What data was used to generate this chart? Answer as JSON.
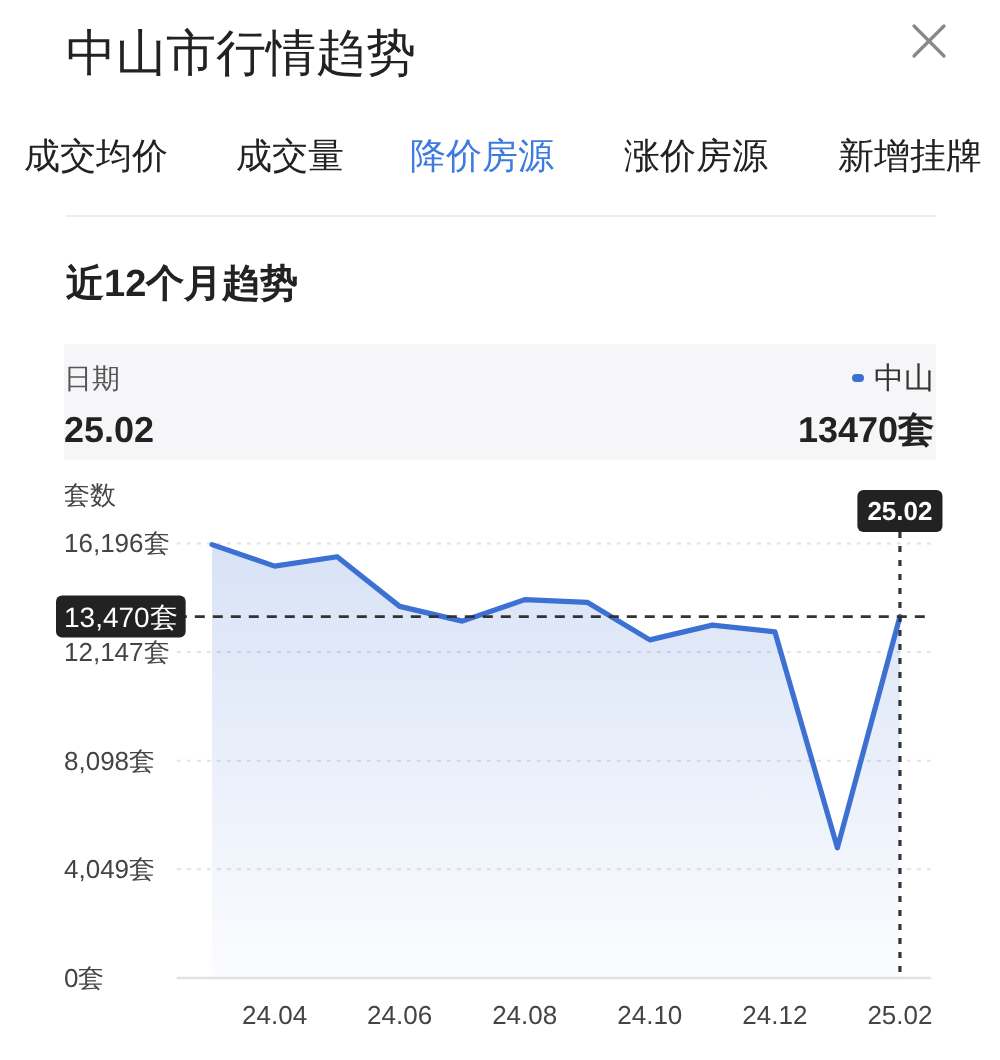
{
  "chart_data": {
    "type": "area",
    "title": "中山市行情趋势",
    "subtitle": "近12个月趋势",
    "ylabel": "套数",
    "annotations": [
      "成交均价",
      "成交量",
      "降价房源",
      "涨价房源",
      "新增挂牌",
      "日期",
      "25.02",
      "13470套"
    ],
    "categories": [
      null,
      "24.04",
      null,
      "24.06",
      null,
      "24.08",
      null,
      "24.10",
      null,
      "24.12",
      null,
      "25.02"
    ],
    "series": [
      {
        "name": "中山",
        "color": "#3d70d3",
        "values": [
          16150,
          15350,
          15700,
          13850,
          13300,
          14100,
          14000,
          12600,
          13150,
          12900,
          4850,
          13470
        ]
      }
    ],
    "ylim": [
      0,
      16196
    ],
    "yticks": [
      {
        "value": 0,
        "label": "0套"
      },
      {
        "value": 4049,
        "label": "4,049套"
      },
      {
        "value": 8098,
        "label": "8,098套"
      },
      {
        "value": 12147,
        "label": "12,147套"
      },
      {
        "value": 16196,
        "label": "16,196套"
      }
    ],
    "ref_lines": [
      {
        "axis": "y",
        "value": 13470,
        "label": "13,470套",
        "color": "#333333",
        "line_style": "dashed"
      },
      {
        "axis": "x",
        "value": "25.02",
        "label": "25.02",
        "color": "#333333",
        "line_style": "dotted"
      }
    ],
    "grid": "y",
    "legend": "top right"
  }
}
